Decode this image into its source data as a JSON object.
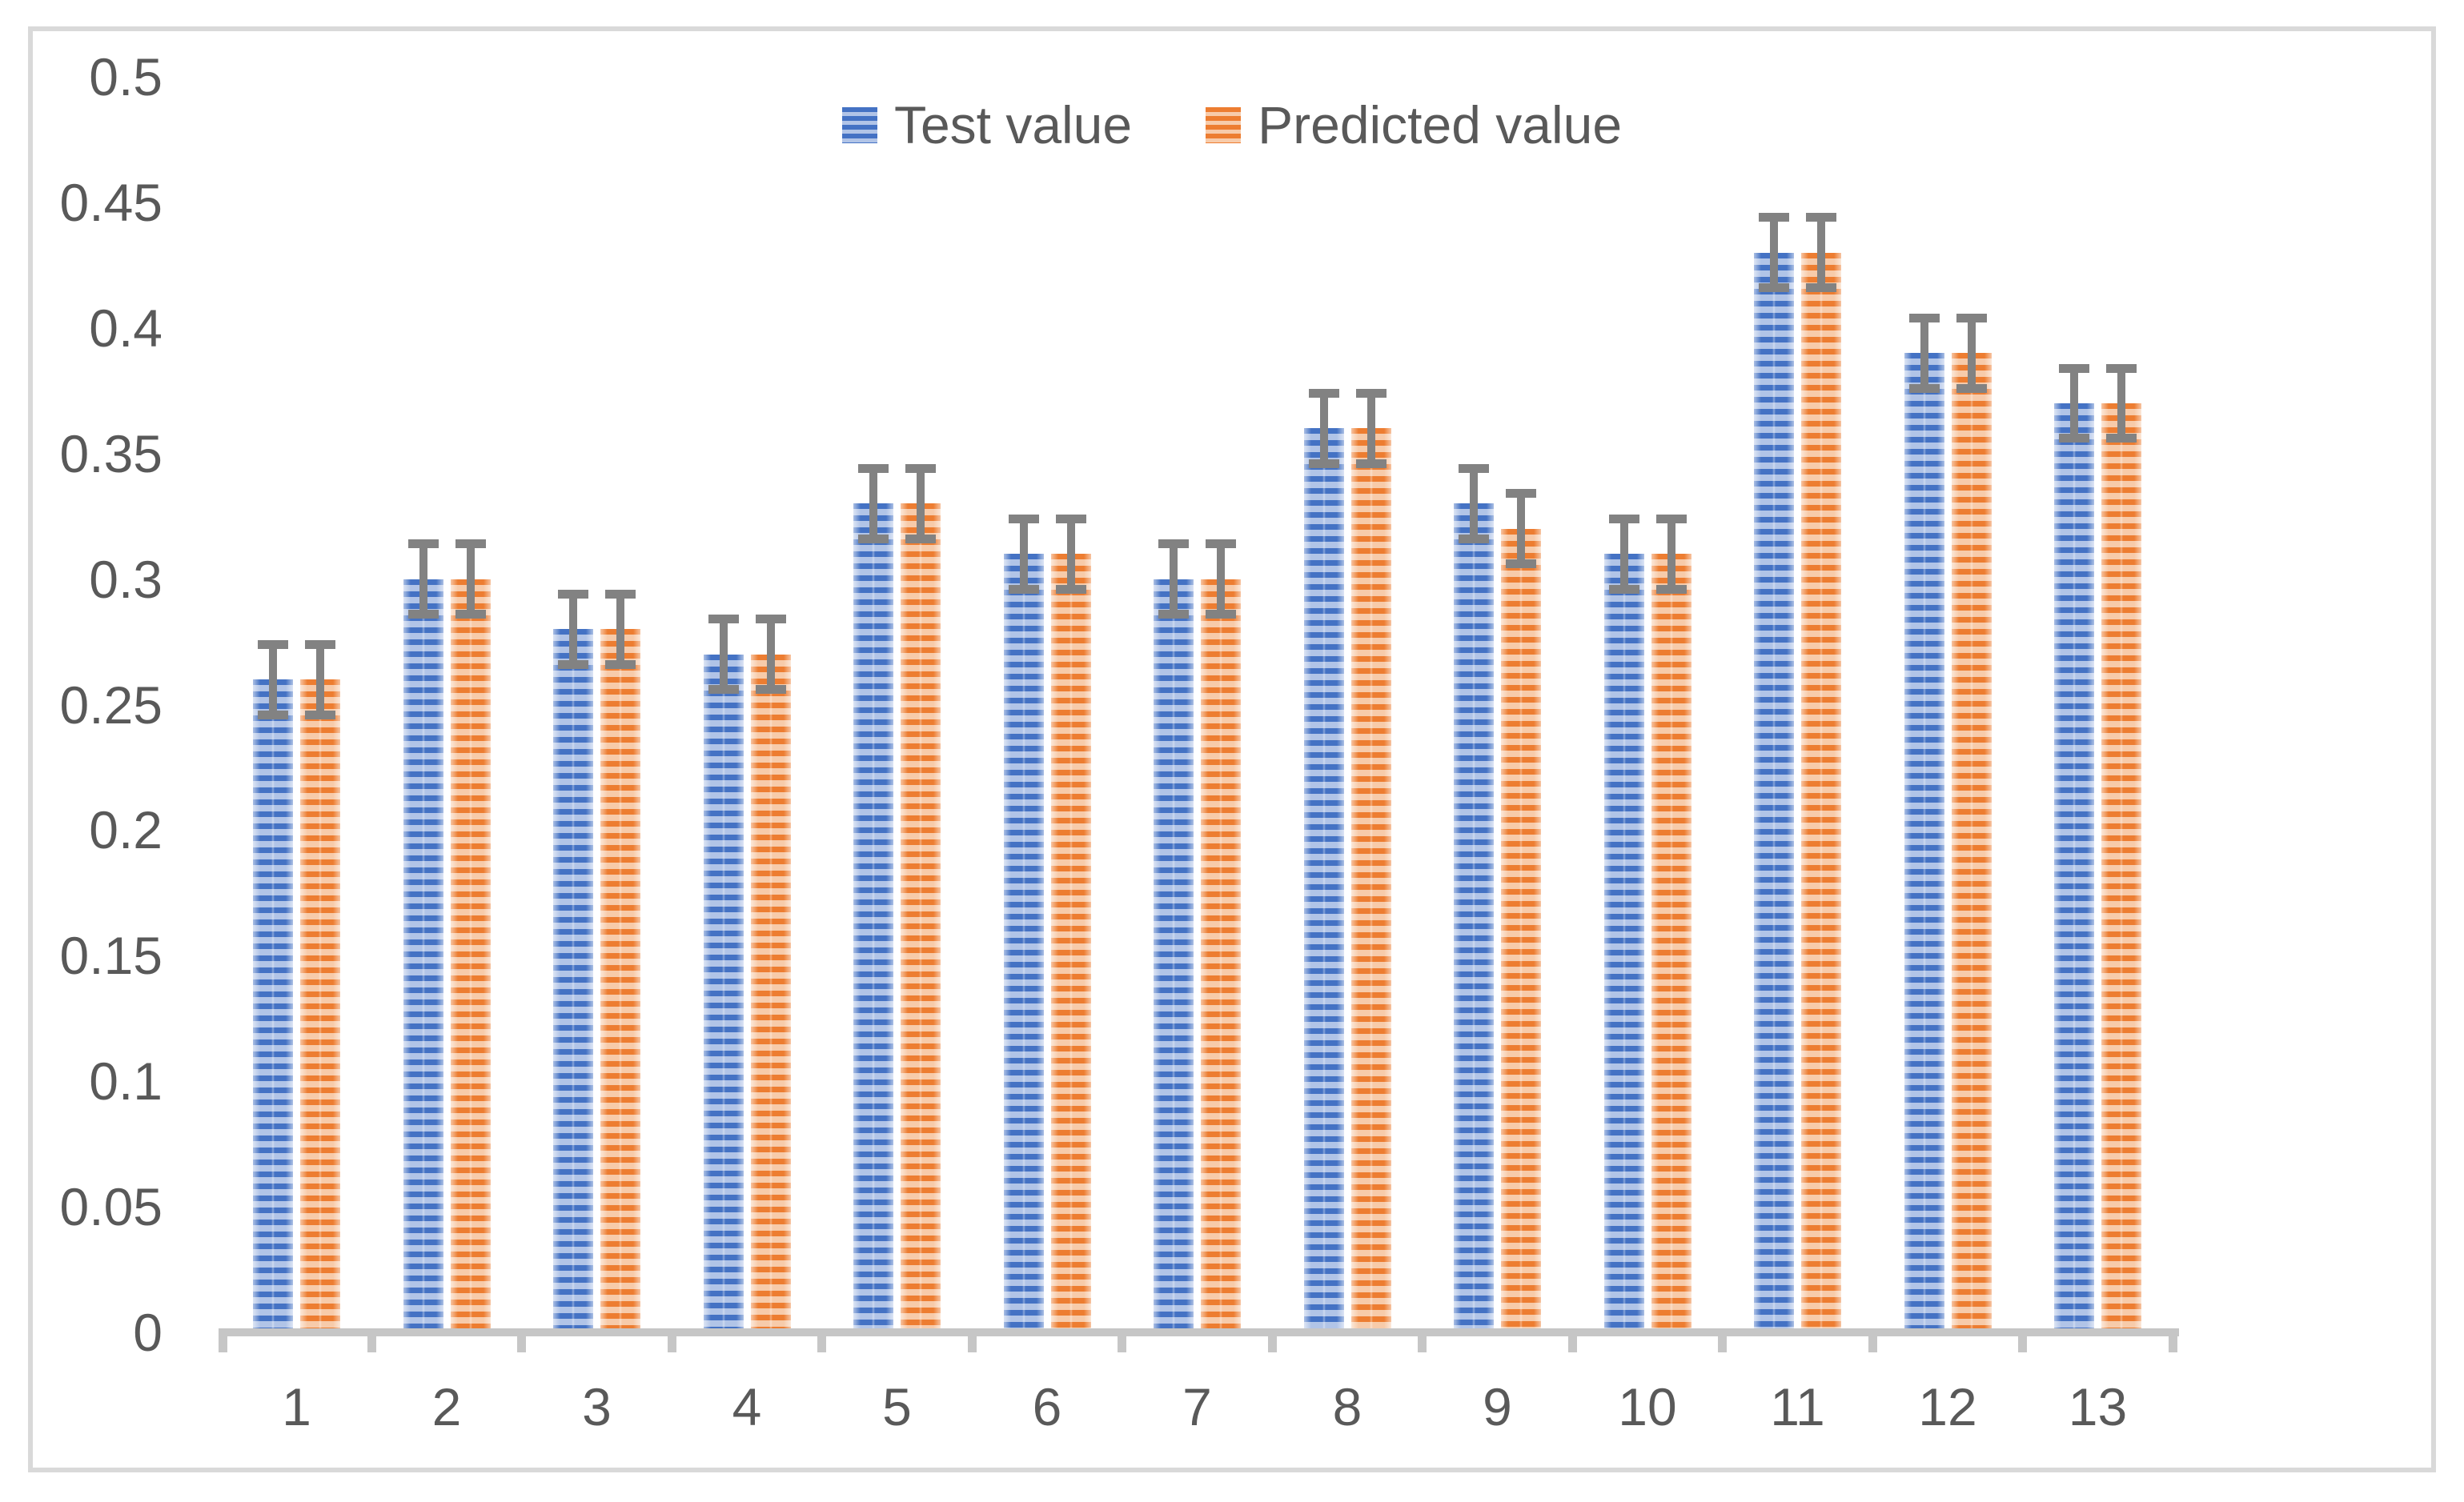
{
  "chart_data": {
    "type": "bar",
    "title": "",
    "categories": [
      "1",
      "2",
      "3",
      "4",
      "5",
      "6",
      "7",
      "8",
      "9",
      "10",
      "11",
      "12",
      "13"
    ],
    "series": [
      {
        "name": "Test value",
        "color": "#4472C4",
        "stripe_light": "#B1C4E7",
        "values": [
          0.26,
          0.3,
          0.28,
          0.27,
          0.33,
          0.31,
          0.3,
          0.36,
          0.33,
          0.31,
          0.43,
          0.39,
          0.37
        ]
      },
      {
        "name": "Predicted value",
        "color": "#ED7D31",
        "stripe_light": "#F7CBAA",
        "values": [
          0.26,
          0.3,
          0.28,
          0.27,
          0.33,
          0.31,
          0.3,
          0.36,
          0.32,
          0.31,
          0.43,
          0.39,
          0.37
        ]
      }
    ],
    "error_bars": {
      "plus": 0.014,
      "minus": 0.014,
      "color": "#828282"
    },
    "y_axis": {
      "min": 0,
      "max": 0.5,
      "step": 0.05,
      "tick_labels": [
        "0",
        "0.05",
        "0.1",
        "0.15",
        "0.2",
        "0.25",
        "0.3",
        "0.35",
        "0.4",
        "0.45",
        "0.5"
      ]
    },
    "x_axis": {
      "tick_labels": [
        "1",
        "2",
        "3",
        "4",
        "5",
        "6",
        "7",
        "8",
        "9",
        "10",
        "11",
        "12",
        "13"
      ]
    },
    "legend": {
      "position": "top-center",
      "entries": [
        "Test value",
        "Predicted value"
      ]
    },
    "grid": false,
    "fill_pattern": "horizontal-stripes"
  },
  "colors": {
    "axis": "#C6C6C6",
    "error_bar": "#828282",
    "text": "#595959",
    "frame_border": "#D9D9D9",
    "background": "#FFFFFF"
  }
}
